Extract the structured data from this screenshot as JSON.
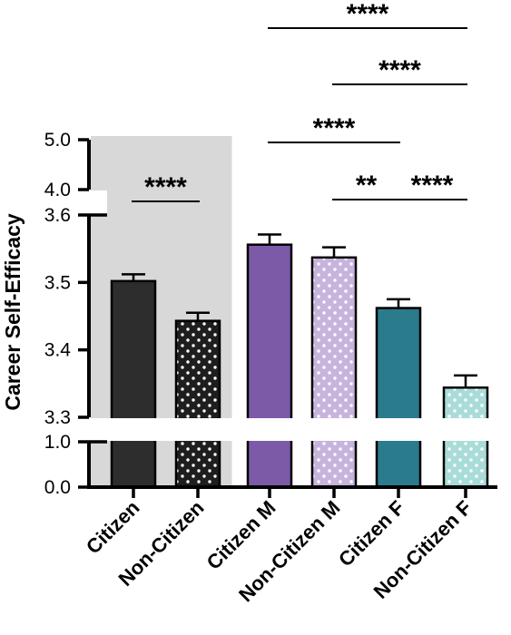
{
  "chart_data": {
    "type": "bar",
    "ylabel": "Career Self-Efficacy",
    "categories": [
      "Citizen",
      "Non-Citizen",
      "Citizen M",
      "Non-Citizen M",
      "Citizen F",
      "Non-Citizen F"
    ],
    "series": [
      {
        "values": [
          3.502,
          3.443,
          3.556,
          3.537,
          3.462,
          3.344
        ],
        "errors": [
          0.01,
          0.012,
          0.015,
          0.015,
          0.013,
          0.018
        ],
        "colors": [
          "#2d2d2d",
          "#1e1e1e",
          "#7c5aa8",
          "#c6b4dd",
          "#2a7b8c",
          "#a9dcd8"
        ],
        "patterns": [
          "solid",
          "dots",
          "solid",
          "dots",
          "solid",
          "dots"
        ]
      }
    ],
    "broken_axis": {
      "segments": [
        {
          "range": [
            0.0,
            1.0
          ],
          "ticks": [
            "0.0",
            "1.0"
          ]
        },
        {
          "range": [
            3.3,
            3.6
          ],
          "ticks": [
            "3.3",
            "3.4",
            "3.5",
            "3.6"
          ]
        },
        {
          "range": [
            4.0,
            5.0
          ],
          "ticks": [
            "4.0",
            "5.0"
          ]
        }
      ]
    },
    "shaded_region": {
      "categories": [
        "Citizen",
        "Non-Citizen"
      ],
      "color": "#d8d8d8"
    },
    "significance": [
      {
        "from": "Citizen",
        "to": "Non-Citizen",
        "label": "****"
      },
      {
        "from": "Citizen M",
        "to": "Citizen F",
        "label": "****"
      },
      {
        "from": "Non-Citizen M",
        "to": "Citizen F",
        "label": "**"
      },
      {
        "from": "Citizen F",
        "to": "Non-Citizen F",
        "label": "****"
      },
      {
        "from": "Non-Citizen M",
        "to": "Non-Citizen F",
        "label": "****"
      },
      {
        "from": "Citizen M",
        "to": "Non-Citizen F",
        "label": "****"
      }
    ]
  }
}
